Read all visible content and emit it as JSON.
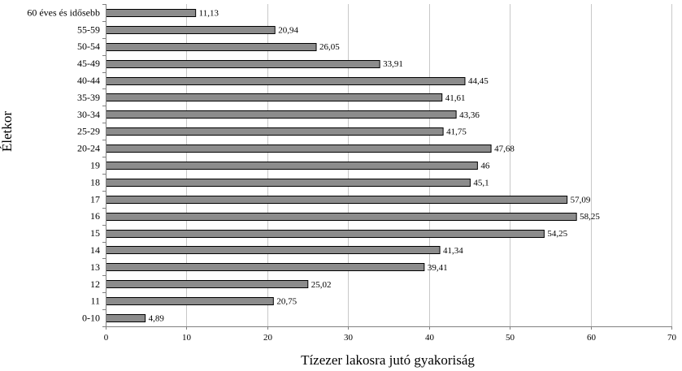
{
  "chart_data": {
    "type": "bar",
    "orientation": "horizontal",
    "title": "",
    "xlabel": "Tízezer lakosra jutó gyakoriság",
    "ylabel": "Életkor",
    "xlim": [
      0,
      70
    ],
    "x_ticks": [
      0,
      10,
      20,
      30,
      40,
      50,
      60,
      70
    ],
    "grid": "vertical",
    "legend": "none",
    "bar_color": "#8c8c8c",
    "categories": [
      "60 éves és idősebb",
      "55-59",
      "50-54",
      "45-49",
      "40-44",
      "35-39",
      "30-34",
      "25-29",
      "20-24",
      "19",
      "18",
      "17",
      "16",
      "15",
      "14",
      "13",
      "12",
      "11",
      "0-10"
    ],
    "values": [
      11.13,
      20.94,
      26.05,
      33.91,
      44.45,
      41.61,
      43.36,
      41.75,
      47.68,
      46,
      45.1,
      57.09,
      58.25,
      54.25,
      41.34,
      39.41,
      25.02,
      20.75,
      4.89
    ],
    "value_labels": [
      "11,13",
      "20,94",
      "26,05",
      "33,91",
      "44,45",
      "41,61",
      "43,36",
      "41,75",
      "47,68",
      "46",
      "45,1",
      "57,09",
      "58,25",
      "54,25",
      "41,34",
      "39,41",
      "25,02",
      "20,75",
      "4,89"
    ]
  }
}
